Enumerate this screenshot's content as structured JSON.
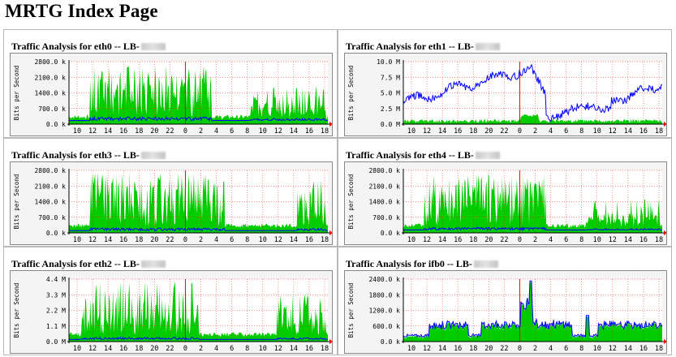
{
  "page": {
    "title": "MRTG Index Page"
  },
  "graphs": [
    {
      "title": "Traffic Analysis for eth0 -- LB-",
      "ylabel": "Bits per Second",
      "yticks": [
        "2800.0 k",
        "2100.0 k",
        "1400.0 k",
        "700.0 k",
        "0.0 k"
      ],
      "xticks": [
        "10",
        "12",
        "14",
        "16",
        "18",
        "20",
        "22",
        "0",
        "2",
        "4",
        "6",
        "8",
        "10",
        "12",
        "14",
        "16",
        "18"
      ]
    },
    {
      "title": "Traffic Analysis for eth1 -- LB-",
      "ylabel": "Bits per Second",
      "yticks": [
        "10.0 M",
        "7.5 M",
        "5.0 M",
        "2.5 M",
        "0.0 M"
      ],
      "xticks": [
        "10",
        "12",
        "14",
        "16",
        "18",
        "20",
        "22",
        "0",
        "2",
        "4",
        "6",
        "8",
        "10",
        "12",
        "14",
        "16",
        "18"
      ]
    },
    {
      "title": "Traffic Analysis for eth3 -- LB-",
      "ylabel": "Bits per Second",
      "yticks": [
        "2800.0 k",
        "2100.0 k",
        "1400.0 k",
        "700.0 k",
        "0.0 k"
      ],
      "xticks": [
        "10",
        "12",
        "14",
        "16",
        "18",
        "20",
        "22",
        "0",
        "2",
        "4",
        "6",
        "8",
        "10",
        "12",
        "14",
        "16",
        "18"
      ]
    },
    {
      "title": "Traffic Analysis for eth4 -- LB-",
      "ylabel": "Bits per Second",
      "yticks": [
        "2800.0 k",
        "2100.0 k",
        "1400.0 k",
        "700.0 k",
        "0.0 k"
      ],
      "xticks": [
        "10",
        "12",
        "14",
        "16",
        "18",
        "20",
        "22",
        "0",
        "2",
        "4",
        "6",
        "8",
        "10",
        "12",
        "14",
        "16",
        "18"
      ]
    },
    {
      "title": "Traffic Analysis for eth2 -- LB-",
      "ylabel": "Bits per Second",
      "yticks": [
        "4.4 M",
        "3.3 M",
        "2.2 M",
        "1.1 M",
        "0.0 M"
      ],
      "xticks": [
        "10",
        "12",
        "14",
        "16",
        "18",
        "20",
        "22",
        "0",
        "2",
        "4",
        "6",
        "8",
        "10",
        "12",
        "14",
        "16",
        "18"
      ]
    },
    {
      "title": "Traffic Analysis for ifb0 -- LB-",
      "ylabel": "Bits per Second",
      "yticks": [
        "2400.0 k",
        "1800.0 k",
        "1200.0 k",
        "600.0 k",
        "0.0 k"
      ],
      "xticks": [
        "10",
        "12",
        "14",
        "16",
        "18",
        "20",
        "22",
        "0",
        "2",
        "4",
        "6",
        "8",
        "10",
        "12",
        "14",
        "16",
        "18"
      ]
    }
  ],
  "colors": {
    "in": "#00cc00",
    "out": "#0000ff",
    "grid": "#ff0000",
    "now": "#ff0000"
  }
}
